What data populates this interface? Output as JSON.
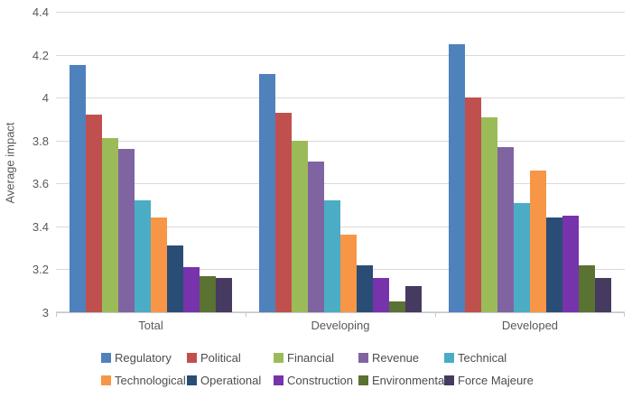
{
  "chart_data": {
    "type": "bar",
    "title": "",
    "xlabel": "",
    "ylabel": "Average impact",
    "ylim": [
      3,
      4.4
    ],
    "yticks": [
      {
        "value": 3,
        "label": "3"
      },
      {
        "value": 3.2,
        "label": "3.2"
      },
      {
        "value": 3.4,
        "label": "3.4"
      },
      {
        "value": 3.6,
        "label": "3.6"
      },
      {
        "value": 3.8,
        "label": "3.8"
      },
      {
        "value": 4,
        "label": "4"
      },
      {
        "value": 4.2,
        "label": "4.2"
      },
      {
        "value": 4.4,
        "label": "4.4"
      }
    ],
    "categories": [
      "Total",
      "Developing",
      "Developed"
    ],
    "series": [
      {
        "name": "Regulatory",
        "color": "#4f81bd",
        "values": [
          4.15,
          4.11,
          4.25
        ]
      },
      {
        "name": "Political",
        "color": "#c0504d",
        "values": [
          3.92,
          3.93,
          4.0
        ]
      },
      {
        "name": "Financial",
        "color": "#9bbb59",
        "values": [
          3.81,
          3.8,
          3.91
        ]
      },
      {
        "name": "Revenue",
        "color": "#8064a2",
        "values": [
          3.76,
          3.7,
          3.77
        ]
      },
      {
        "name": "Technical",
        "color": "#4bacc6",
        "values": [
          3.52,
          3.52,
          3.51
        ]
      },
      {
        "name": "Technological",
        "color": "#f79646",
        "values": [
          3.44,
          3.36,
          3.66
        ]
      },
      {
        "name": "Operational",
        "color": "#2a4d75",
        "values": [
          3.31,
          3.22,
          3.44
        ]
      },
      {
        "name": "Construction",
        "color": "#7733ab",
        "values": [
          3.21,
          3.16,
          3.45
        ]
      },
      {
        "name": "Environmental",
        "color": "#5a7232",
        "values": [
          3.17,
          3.05,
          3.22
        ]
      },
      {
        "name": "Force Majeure",
        "color": "#463a60",
        "values": [
          3.16,
          3.12,
          3.16
        ]
      }
    ],
    "grid": true,
    "legend_position": "bottom",
    "legend_columns": 5
  },
  "colors": {
    "background": "#ffffff",
    "gridline": "#d9d9d9",
    "axis_text": "#595959",
    "legend_text": "#4d4d4d"
  }
}
